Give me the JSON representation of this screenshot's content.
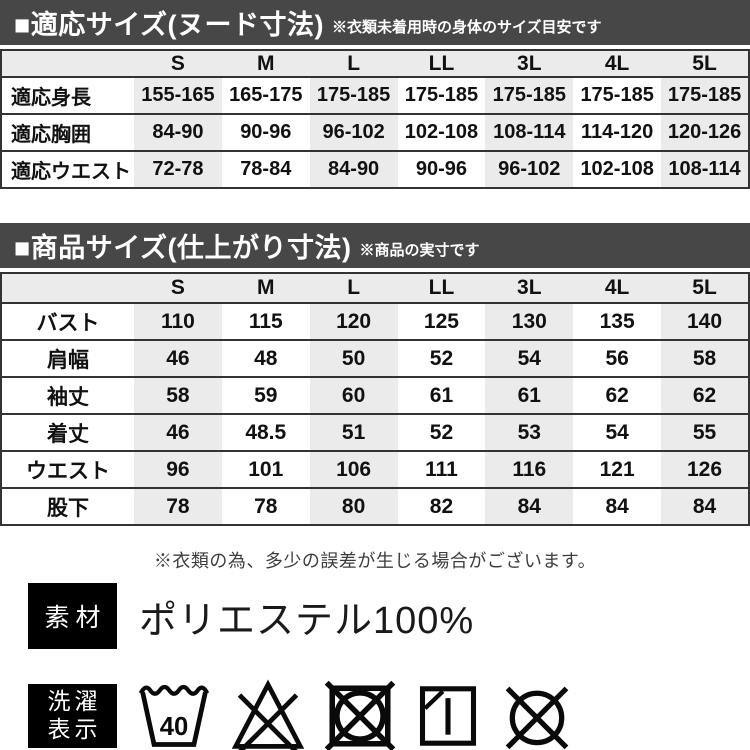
{
  "colors": {
    "section_bar_bg": "#474747",
    "stripe_bg": "#ebebeb",
    "label_box_bg": "#000000",
    "border": "#333333"
  },
  "section1": {
    "title": "■適応サイズ(ヌード寸法)",
    "note": "※衣類未着用時の身体のサイズ目安です",
    "table": {
      "columns": [
        "S",
        "M",
        "L",
        "LL",
        "3L",
        "4L",
        "5L"
      ],
      "rows": [
        {
          "label": "適応身長",
          "values": [
            "155-165",
            "165-175",
            "175-185",
            "175-185",
            "175-185",
            "175-185",
            "175-185"
          ]
        },
        {
          "label": "適応胸囲",
          "values": [
            "84-90",
            "90-96",
            "96-102",
            "102-108",
            "108-114",
            "114-120",
            "120-126"
          ]
        },
        {
          "label": "適応ウエスト",
          "values": [
            "72-78",
            "78-84",
            "84-90",
            "90-96",
            "96-102",
            "102-108",
            "108-114"
          ]
        }
      ]
    }
  },
  "section2": {
    "title": "■商品サイズ(仕上がり寸法)",
    "note": "※商品の実寸です",
    "table": {
      "columns": [
        "S",
        "M",
        "L",
        "LL",
        "3L",
        "4L",
        "5L"
      ],
      "rows": [
        {
          "label": "バスト",
          "values": [
            "110",
            "115",
            "120",
            "125",
            "130",
            "135",
            "140"
          ]
        },
        {
          "label": "肩幅",
          "values": [
            "46",
            "48",
            "50",
            "52",
            "54",
            "56",
            "58"
          ]
        },
        {
          "label": "袖丈",
          "values": [
            "58",
            "59",
            "60",
            "61",
            "61",
            "62",
            "62"
          ]
        },
        {
          "label": "着丈",
          "values": [
            "46",
            "48.5",
            "51",
            "52",
            "53",
            "54",
            "55"
          ]
        },
        {
          "label": "ウエスト",
          "values": [
            "96",
            "101",
            "106",
            "111",
            "116",
            "121",
            "126"
          ]
        },
        {
          "label": "股下",
          "values": [
            "78",
            "78",
            "80",
            "82",
            "84",
            "84",
            "84"
          ]
        }
      ]
    }
  },
  "disclaimer": "※衣類の為、多少の誤差が生じる場合がございます。",
  "material": {
    "label": "素材",
    "value": "ポリエステル100%"
  },
  "laundry": {
    "label_line1": "洗濯",
    "label_line2": "表示",
    "wash_temp": "40",
    "icons": [
      "wash-40-icon",
      "do-not-bleach-icon",
      "do-not-tumble-dry-icon",
      "line-dry-in-shade-icon",
      "do-not-dryclean-icon"
    ]
  }
}
